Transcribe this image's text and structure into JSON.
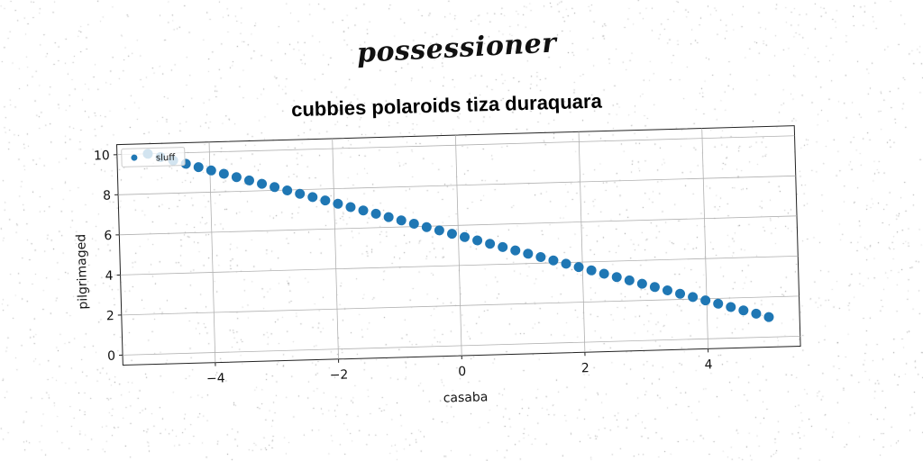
{
  "suptitle": "possessioner",
  "chart_data": {
    "type": "scatter",
    "title": "cubbies polaroids tiza duraquara",
    "xlabel": "casaba",
    "ylabel": "pilgrimaged",
    "xlim": [
      -5.5,
      5.5
    ],
    "ylim": [
      -0.5,
      10.5
    ],
    "xticks": [
      -4,
      -2,
      0,
      2,
      4
    ],
    "xtick_labels": [
      "−4",
      "−2",
      "0",
      "2",
      "4"
    ],
    "yticks": [
      0,
      2,
      4,
      6,
      8,
      10
    ],
    "ytick_labels": [
      "0",
      "2",
      "4",
      "6",
      "8",
      "10"
    ],
    "grid": true,
    "legend_position": "upper-left",
    "series": [
      {
        "name": "sluff",
        "color": "#1f77b4",
        "x_range": [
          -5,
          5
        ],
        "count": 50,
        "y_range": [
          10,
          1
        ]
      }
    ]
  }
}
